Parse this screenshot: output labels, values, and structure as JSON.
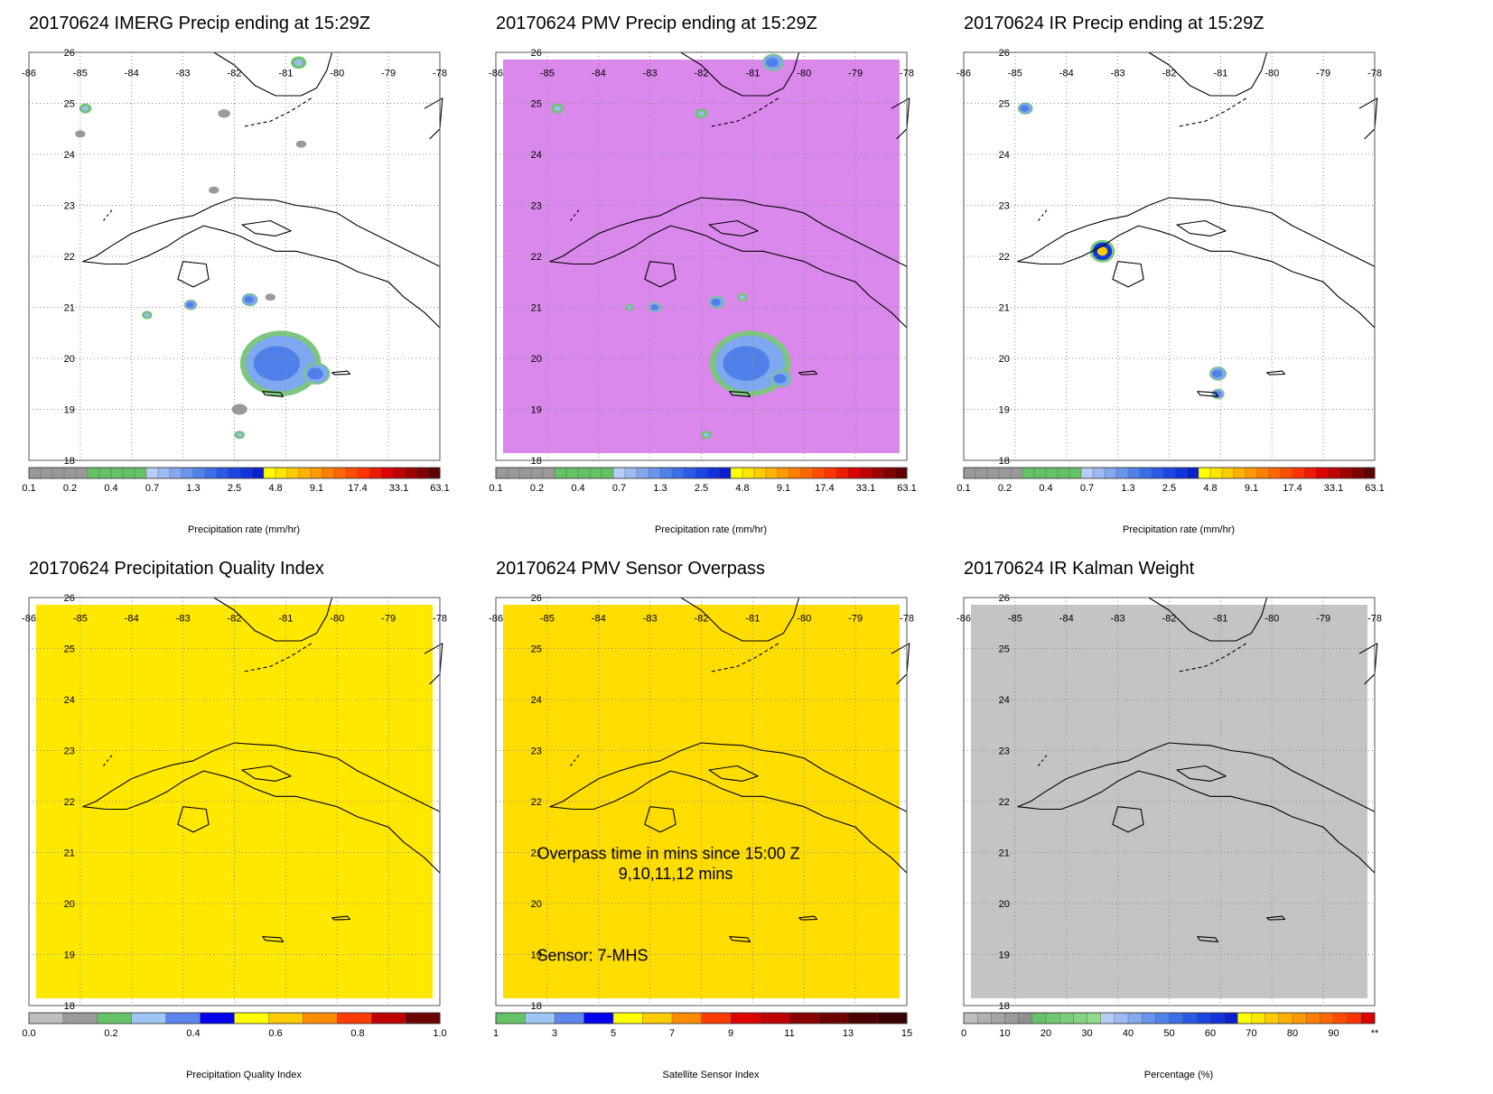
{
  "chart_data": [
    {
      "type": "heatmap",
      "title": "20170624 IMERG Precip ending at 15:29Z",
      "fill": "none",
      "x_ticks": [
        "-86",
        "-85",
        "-84",
        "-83",
        "-82",
        "-81",
        "-80",
        "-79",
        "-78"
      ],
      "y_ticks": [
        "26",
        "25",
        "24",
        "23",
        "22",
        "21",
        "20",
        "19",
        "18"
      ],
      "colorbar": {
        "label": "Precipitation rate (mm/hr)",
        "tick_labels": [
          "0.1",
          "0.2",
          "0.4",
          "0.7",
          "1.3",
          "2.5",
          "4.8",
          "9.1",
          "17.4",
          "33.1",
          "63.1"
        ],
        "colors": [
          "#9a9a9a",
          "#9a9a9a",
          "#9a9a9a",
          "#9a9a9a",
          "#9a9a9a",
          "#66c266",
          "#66c266",
          "#66c266",
          "#66c266",
          "#66c266",
          "#b8ccf5",
          "#9fbaf2",
          "#86a8ef",
          "#6a95ec",
          "#4f83e9",
          "#3a6fe8",
          "#2a5ae6",
          "#1a46e3",
          "#1033dd",
          "#0b1fcc",
          "#ffff00",
          "#ffe600",
          "#ffcc00",
          "#ffb300",
          "#ff9900",
          "#ff8000",
          "#ff6600",
          "#ff4d00",
          "#ff3300",
          "#ee1a00",
          "#dd0000",
          "#c00000",
          "#a00000",
          "#800000",
          "#600000"
        ]
      },
      "blobs": [
        {
          "lon": -81.1,
          "lat": 19.9,
          "r": 0.75,
          "type": "rain"
        },
        {
          "lon": -80.4,
          "lat": 19.7,
          "r": 0.25,
          "type": "rain"
        },
        {
          "lon": -81.7,
          "lat": 21.15,
          "r": 0.15,
          "type": "rain"
        },
        {
          "lon": -82.85,
          "lat": 21.05,
          "r": 0.12,
          "type": "rain"
        },
        {
          "lon": -83.7,
          "lat": 20.85,
          "r": 0.1,
          "type": "light"
        },
        {
          "lon": -80.75,
          "lat": 25.8,
          "r": 0.15,
          "type": "light"
        },
        {
          "lon": -84.9,
          "lat": 24.9,
          "r": 0.12,
          "type": "light"
        },
        {
          "lon": -81.3,
          "lat": 21.2,
          "r": 0.1,
          "type": "gray"
        },
        {
          "lon": -82.2,
          "lat": 24.8,
          "r": 0.12,
          "type": "gray"
        },
        {
          "lon": -81.9,
          "lat": 18.5,
          "r": 0.1,
          "type": "light"
        },
        {
          "lon": -81.9,
          "lat": 19.0,
          "r": 0.15,
          "type": "gray"
        },
        {
          "lon": -85.0,
          "lat": 24.4,
          "r": 0.1,
          "type": "gray"
        },
        {
          "lon": -80.7,
          "lat": 24.2,
          "r": 0.1,
          "type": "gray"
        },
        {
          "lon": -82.4,
          "lat": 23.3,
          "r": 0.1,
          "type": "gray"
        }
      ]
    },
    {
      "type": "heatmap",
      "title": "20170624 PMV Precip ending at 15:29Z",
      "fill": "#da88ec",
      "x_ticks": [
        "-86",
        "-85",
        "-84",
        "-83",
        "-82",
        "-81",
        "-80",
        "-79",
        "-78"
      ],
      "y_ticks": [
        "26",
        "25",
        "24",
        "23",
        "22",
        "21",
        "20",
        "19",
        "18"
      ],
      "colorbar": {
        "label": "Precipitation rate (mm/hr)",
        "tick_labels": [
          "0.1",
          "0.2",
          "0.4",
          "0.7",
          "1.3",
          "2.5",
          "4.8",
          "9.1",
          "17.4",
          "33.1",
          "63.1"
        ],
        "colors": [
          "#9a9a9a",
          "#9a9a9a",
          "#9a9a9a",
          "#9a9a9a",
          "#9a9a9a",
          "#66c266",
          "#66c266",
          "#66c266",
          "#66c266",
          "#66c266",
          "#b8ccf5",
          "#9fbaf2",
          "#86a8ef",
          "#6a95ec",
          "#4f83e9",
          "#3a6fe8",
          "#2a5ae6",
          "#1a46e3",
          "#1033dd",
          "#0b1fcc",
          "#ffff00",
          "#ffe600",
          "#ffcc00",
          "#ffb300",
          "#ff9900",
          "#ff8000",
          "#ff6600",
          "#ff4d00",
          "#ff3300",
          "#ee1a00",
          "#dd0000",
          "#c00000",
          "#a00000",
          "#800000",
          "#600000"
        ]
      },
      "blobs": [
        {
          "lon": -81.05,
          "lat": 19.9,
          "r": 0.75,
          "type": "rain"
        },
        {
          "lon": -80.45,
          "lat": 19.6,
          "r": 0.2,
          "type": "rain"
        },
        {
          "lon": -81.7,
          "lat": 21.1,
          "r": 0.15,
          "type": "rain"
        },
        {
          "lon": -82.9,
          "lat": 21.0,
          "r": 0.12,
          "type": "rain"
        },
        {
          "lon": -81.2,
          "lat": 21.2,
          "r": 0.1,
          "type": "light"
        },
        {
          "lon": -80.6,
          "lat": 25.8,
          "r": 0.2,
          "type": "rain"
        },
        {
          "lon": -84.8,
          "lat": 24.9,
          "r": 0.12,
          "type": "light"
        },
        {
          "lon": -82.0,
          "lat": 24.8,
          "r": 0.12,
          "type": "light"
        },
        {
          "lon": -81.9,
          "lat": 18.5,
          "r": 0.1,
          "type": "light"
        },
        {
          "lon": -83.4,
          "lat": 21.0,
          "r": 0.08,
          "type": "light"
        }
      ]
    },
    {
      "type": "heatmap",
      "title": "20170624 IR Precip ending at 15:29Z",
      "fill": "none",
      "x_ticks": [
        "-86",
        "-85",
        "-84",
        "-83",
        "-82",
        "-81",
        "-80",
        "-79",
        "-78"
      ],
      "y_ticks": [
        "26",
        "25",
        "24",
        "23",
        "22",
        "21",
        "20",
        "19",
        "18"
      ],
      "colorbar": {
        "label": "Precipitation rate (mm/hr)",
        "tick_labels": [
          "0.1",
          "0.2",
          "0.4",
          "0.7",
          "1.3",
          "2.5",
          "4.8",
          "9.1",
          "17.4",
          "33.1",
          "63.1"
        ],
        "colors": [
          "#9a9a9a",
          "#9a9a9a",
          "#9a9a9a",
          "#9a9a9a",
          "#9a9a9a",
          "#66c266",
          "#66c266",
          "#66c266",
          "#66c266",
          "#66c266",
          "#b8ccf5",
          "#9fbaf2",
          "#86a8ef",
          "#6a95ec",
          "#4f83e9",
          "#3a6fe8",
          "#2a5ae6",
          "#1a46e3",
          "#1033dd",
          "#0b1fcc",
          "#ffff00",
          "#ffe600",
          "#ffcc00",
          "#ffb300",
          "#ff9900",
          "#ff8000",
          "#ff6600",
          "#ff4d00",
          "#ff3300",
          "#ee1a00",
          "#dd0000",
          "#c00000",
          "#a00000",
          "#800000",
          "#600000"
        ]
      },
      "blobs": [
        {
          "lon": -83.3,
          "lat": 22.1,
          "r": 0.22,
          "type": "core"
        },
        {
          "lon": -81.05,
          "lat": 19.7,
          "r": 0.16,
          "type": "rain"
        },
        {
          "lon": -81.05,
          "lat": 19.3,
          "r": 0.12,
          "type": "rain"
        },
        {
          "lon": -84.8,
          "lat": 24.9,
          "r": 0.14,
          "type": "rain"
        }
      ]
    },
    {
      "type": "heatmap",
      "title": "20170624 Precipitation Quality Index",
      "fill": "#ffe800",
      "x_ticks": [
        "-86",
        "-85",
        "-84",
        "-83",
        "-82",
        "-81",
        "-80",
        "-79",
        "-78"
      ],
      "y_ticks": [
        "26",
        "25",
        "24",
        "23",
        "22",
        "21",
        "20",
        "19",
        "18"
      ],
      "colorbar": {
        "label": "Precipitation Quality Index",
        "tick_labels": [
          "0.0",
          "0.2",
          "0.4",
          "0.6",
          "0.8",
          "1.0"
        ],
        "colors": [
          "#bfbfbf",
          "#9a9a9a",
          "#66c266",
          "#9fc6f5",
          "#5c86ee",
          "#0000ee",
          "#ffff00",
          "#ffcc00",
          "#ff8c00",
          "#ff3c00",
          "#c00000",
          "#6b0000"
        ]
      },
      "blobs": []
    },
    {
      "type": "heatmap",
      "title": "20170624 PMV Sensor Overpass",
      "fill": "#ffdd00",
      "x_ticks": [
        "-86",
        "-85",
        "-84",
        "-83",
        "-82",
        "-81",
        "-80",
        "-79",
        "-78"
      ],
      "y_ticks": [
        "26",
        "25",
        "24",
        "23",
        "22",
        "21",
        "20",
        "19",
        "18"
      ],
      "colorbar": {
        "label": "Satellite Sensor Index",
        "tick_labels": [
          "1",
          "3",
          "5",
          "7",
          "9",
          "11",
          "13",
          "15"
        ],
        "colors": [
          "#66c266",
          "#9fc6f5",
          "#5c86ee",
          "#0000ee",
          "#ffff00",
          "#ffcc00",
          "#ff8c00",
          "#ff3c00",
          "#dd0000",
          "#c00000",
          "#8b0000",
          "#6b0000",
          "#4a0000",
          "#3a0000"
        ]
      },
      "annotations": [
        "Overpass time in mins since 15:00 Z",
        "9,10,11,12 mins",
        "Sensor:   7-MHS"
      ],
      "blobs": []
    },
    {
      "type": "heatmap",
      "title": "20170624 IR Kalman Weight",
      "fill": "#c4c4c4",
      "x_ticks": [
        "-86",
        "-85",
        "-84",
        "-83",
        "-82",
        "-81",
        "-80",
        "-79",
        "-78"
      ],
      "y_ticks": [
        "26",
        "25",
        "24",
        "23",
        "22",
        "21",
        "20",
        "19",
        "18"
      ],
      "colorbar": {
        "label": "Percentage (%)",
        "tick_labels": [
          "0",
          "10",
          "20",
          "30",
          "40",
          "50",
          "60",
          "70",
          "80",
          "90",
          "**"
        ],
        "colors": [
          "#bfbfbf",
          "#b0b0b0",
          "#a5a5a5",
          "#9a9a9a",
          "#909090",
          "#66c266",
          "#70c870",
          "#7ace7a",
          "#84d484",
          "#8eda8e",
          "#b8ccf5",
          "#9fbaf2",
          "#86a8ef",
          "#6a95ec",
          "#4f83e9",
          "#3a6fe8",
          "#2a5ae6",
          "#1a46e3",
          "#1033dd",
          "#0b1fcc",
          "#ffff00",
          "#ffe600",
          "#ffcc00",
          "#ffb300",
          "#ff9900",
          "#ff8000",
          "#ff6600",
          "#ff4d00",
          "#ff3300",
          "#dd0000"
        ]
      },
      "blobs": []
    }
  ]
}
